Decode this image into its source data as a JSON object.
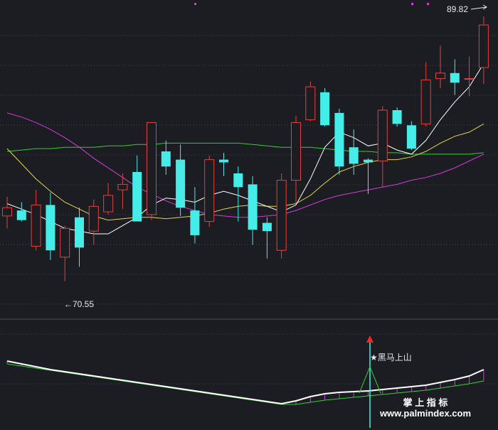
{
  "chart_data": [
    {
      "type": "candlestick",
      "grid": true,
      "legend": "none",
      "colors": {
        "up": "#e0413a",
        "down": "#45ece8",
        "ma_short": "#ffffff",
        "ma_mid": "#e5d44a",
        "ma_long": "#d43bd6",
        "ma_xlong": "#2fd02f"
      },
      "ylim": [
        68.0,
        90.5
      ],
      "candles": [
        {
          "o": 75.3,
          "h": 76.7,
          "l": 74.4,
          "c": 75.9
        },
        {
          "o": 75.7,
          "h": 76.3,
          "l": 74.9,
          "c": 75.0
        },
        {
          "o": 73.1,
          "h": 77.2,
          "l": 72.8,
          "c": 76.1
        },
        {
          "o": 76.1,
          "h": 77.0,
          "l": 72.1,
          "c": 72.8
        },
        {
          "o": 72.3,
          "h": 74.6,
          "l": 70.55,
          "c": 74.4
        },
        {
          "o": 75.2,
          "h": 75.9,
          "l": 71.6,
          "c": 73.0
        },
        {
          "o": 74.2,
          "h": 76.5,
          "l": 73.2,
          "c": 76.0
        },
        {
          "o": 75.6,
          "h": 77.7,
          "l": 75.4,
          "c": 76.8
        },
        {
          "o": 77.2,
          "h": 78.4,
          "l": 75.8,
          "c": 77.6
        },
        {
          "o": 78.5,
          "h": 79.7,
          "l": 74.9,
          "c": 74.9
        },
        {
          "o": 75.4,
          "h": 82.1,
          "l": 75.0,
          "c": 82.1
        },
        {
          "o": 80.0,
          "h": 80.8,
          "l": 78.3,
          "c": 78.9
        },
        {
          "o": 79.4,
          "h": 80.5,
          "l": 75.3,
          "c": 75.9
        },
        {
          "o": 75.7,
          "h": 77.4,
          "l": 73.3,
          "c": 73.9
        },
        {
          "o": 74.9,
          "h": 79.7,
          "l": 74.5,
          "c": 79.4
        },
        {
          "o": 79.4,
          "h": 79.9,
          "l": 78.2,
          "c": 79.2
        },
        {
          "o": 78.4,
          "h": 78.9,
          "l": 74.9,
          "c": 77.4
        },
        {
          "o": 77.6,
          "h": 78.2,
          "l": 73.2,
          "c": 74.3
        },
        {
          "o": 74.8,
          "h": 75.2,
          "l": 72.2,
          "c": 74.2
        },
        {
          "o": 72.8,
          "h": 78.4,
          "l": 72.2,
          "c": 77.9
        },
        {
          "o": 77.9,
          "h": 82.6,
          "l": 76.2,
          "c": 82.1
        },
        {
          "o": 82.3,
          "h": 85.1,
          "l": 82.2,
          "c": 84.7
        },
        {
          "o": 84.3,
          "h": 84.6,
          "l": 81.8,
          "c": 81.9
        },
        {
          "o": 82.8,
          "h": 83.1,
          "l": 78.3,
          "c": 78.9
        },
        {
          "o": 80.3,
          "h": 81.6,
          "l": 78.3,
          "c": 79.1
        },
        {
          "o": 79.4,
          "h": 79.5,
          "l": 76.9,
          "c": 79.2
        },
        {
          "o": 79.3,
          "h": 83.3,
          "l": 77.4,
          "c": 83.0
        },
        {
          "o": 83.0,
          "h": 83.2,
          "l": 81.8,
          "c": 82.0
        },
        {
          "o": 81.9,
          "h": 82.2,
          "l": 80.1,
          "c": 80.2
        },
        {
          "o": 82.0,
          "h": 86.5,
          "l": 81.8,
          "c": 85.2
        },
        {
          "o": 85.3,
          "h": 87.7,
          "l": 84.6,
          "c": 85.7
        },
        {
          "o": 85.7,
          "h": 86.7,
          "l": 84.1,
          "c": 85.0
        },
        {
          "o": 85.3,
          "h": 86.9,
          "l": 84.0,
          "c": 85.3
        },
        {
          "o": 86.1,
          "h": 89.82,
          "l": 84.9,
          "c": 89.2
        }
      ],
      "ma_short": [
        76.2,
        75.8,
        75.4,
        74.9,
        74.4,
        74.2,
        74.0,
        74.0,
        74.6,
        75.2,
        76.1,
        76.6,
        76.5,
        76.3,
        76.8,
        77.1,
        76.8,
        76.4,
        76.0,
        75.6,
        76.1,
        78.0,
        80.3,
        81.4,
        81.0,
        80.4,
        80.6,
        80.1,
        79.8,
        80.8,
        82.3,
        83.6,
        84.7,
        86.4
      ],
      "ma_mid": [
        80.2,
        79.1,
        78.0,
        77.1,
        76.3,
        75.8,
        75.3,
        75.0,
        75.1,
        75.2,
        75.2,
        75.1,
        75.2,
        75.3,
        75.5,
        75.8,
        76.0,
        76.1,
        76.0,
        76.0,
        76.2,
        76.8,
        77.7,
        78.5,
        78.9,
        79.2,
        79.4,
        79.4,
        79.6,
        80.0,
        80.6,
        81.1,
        81.4,
        82.0
      ],
      "ma_long": [
        82.8,
        82.5,
        82.1,
        81.6,
        81.0,
        80.3,
        79.5,
        78.8,
        78.1,
        77.4,
        76.9,
        76.4,
        76.0,
        75.7,
        75.4,
        75.3,
        75.2,
        75.2,
        75.3,
        75.4,
        75.7,
        76.1,
        76.5,
        76.8,
        77.0,
        77.2,
        77.4,
        77.6,
        77.9,
        78.1,
        78.4,
        78.8,
        79.3,
        79.8
      ],
      "ma_xlong": [
        80.0,
        80.1,
        80.2,
        80.2,
        80.3,
        80.3,
        80.3,
        80.4,
        80.4,
        80.5,
        80.5,
        80.6,
        80.6,
        80.6,
        80.6,
        80.6,
        80.6,
        80.5,
        80.4,
        80.3,
        80.3,
        80.3,
        80.2,
        80.1,
        80.0,
        80.0,
        79.9,
        79.9,
        79.8,
        79.8,
        79.8,
        79.8,
        79.8,
        79.9
      ],
      "annotations": {
        "low_label": "←70.55",
        "high_label": "89.82"
      }
    },
    {
      "type": "line",
      "grid": true,
      "ylim": [
        0,
        100
      ],
      "indicator_white": [
        92,
        88,
        84,
        80,
        77,
        74,
        71,
        68,
        65,
        62,
        59,
        56,
        53,
        50,
        47,
        44,
        41,
        38,
        35,
        32,
        36,
        42,
        46,
        48,
        49,
        50,
        52,
        54,
        56,
        58,
        62,
        66,
        71,
        80
      ],
      "indicator_green": [
        88,
        85,
        82,
        79,
        76,
        73,
        70,
        67,
        64,
        61,
        58,
        55,
        52,
        49,
        46,
        43,
        40,
        37,
        34,
        31,
        31,
        34,
        37,
        39,
        41,
        43,
        45,
        47,
        49,
        51,
        54,
        57,
        60,
        64
      ],
      "signal_bar_index": 25,
      "signal_peak": 76,
      "annotations": {
        "signal_label": "★黑马上山"
      }
    }
  ],
  "watermark": {
    "line1": "掌 上 指 标",
    "line2": "www.palmindex.com"
  }
}
